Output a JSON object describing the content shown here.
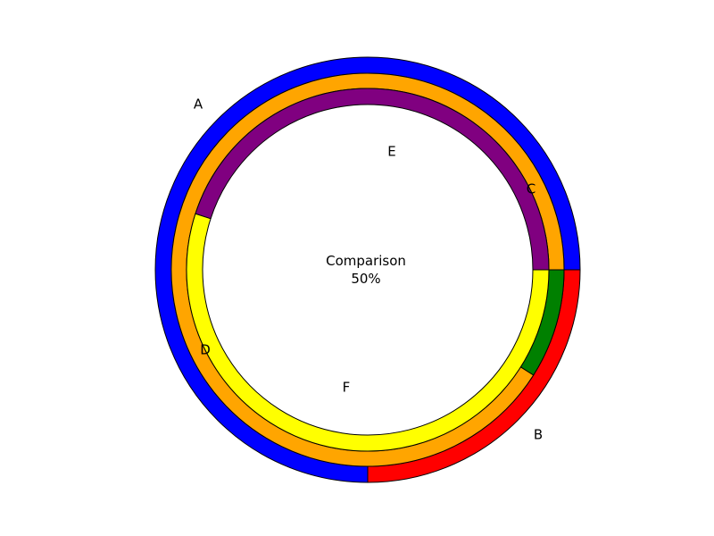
{
  "chart_data": {
    "type": "pie",
    "variant": "nested-donut",
    "center_text": [
      "Comparison",
      "50%"
    ],
    "rings": [
      {
        "name": "",
        "slices": [
          {
            "label": "A",
            "value": 75,
            "color": "#0000ff"
          },
          {
            "label": "B",
            "value": 25,
            "color": "#ff0000"
          }
        ]
      },
      {
        "name": "",
        "slices": [
          {
            "label": "",
            "value": 91,
            "color": "#ffa500"
          },
          {
            "label": "C",
            "value": 9,
            "color": "#008000"
          }
        ]
      },
      {
        "name": "",
        "slices": [
          {
            "label": "E",
            "value": 45,
            "color": "#800080"
          },
          {
            "label": "F",
            "value": 55,
            "color": "#ffff00"
          }
        ]
      }
    ],
    "extra_labels": [
      {
        "label": "D"
      }
    ],
    "start_angle_deg": 0,
    "direction": "counterclockwise",
    "legend": "none",
    "grid": false
  }
}
